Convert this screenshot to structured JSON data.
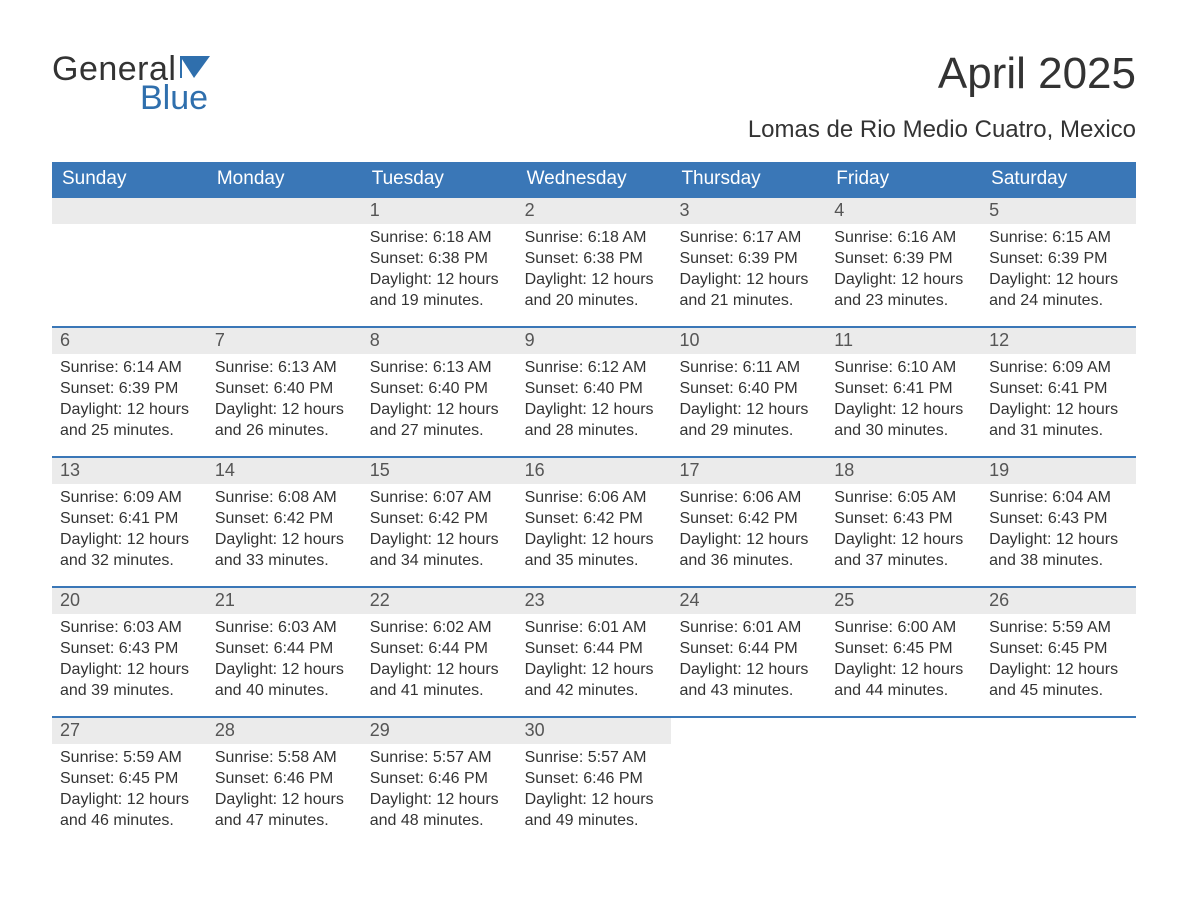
{
  "brand": {
    "word1": "General",
    "word2": "Blue",
    "word1_color": "#333333",
    "word2_color": "#2f6fad",
    "flag_color": "#2f6fad"
  },
  "title": "April 2025",
  "location": "Lomas de Rio Medio Cuatro, Mexico",
  "colors": {
    "header_bg": "#3a77b7",
    "header_text": "#ffffff",
    "daynum_bg": "#ebebeb",
    "daynum_text": "#555555",
    "week_divider": "#3a77b7",
    "body_text": "#333333",
    "page_bg": "#ffffff"
  },
  "day_headers": [
    "Sunday",
    "Monday",
    "Tuesday",
    "Wednesday",
    "Thursday",
    "Friday",
    "Saturday"
  ],
  "weeks": [
    [
      {
        "num": "",
        "sunrise": "",
        "sunset": "",
        "daylight": ""
      },
      {
        "num": "",
        "sunrise": "",
        "sunset": "",
        "daylight": ""
      },
      {
        "num": "1",
        "sunrise": "Sunrise: 6:18 AM",
        "sunset": "Sunset: 6:38 PM",
        "daylight": "Daylight: 12 hours and 19 minutes."
      },
      {
        "num": "2",
        "sunrise": "Sunrise: 6:18 AM",
        "sunset": "Sunset: 6:38 PM",
        "daylight": "Daylight: 12 hours and 20 minutes."
      },
      {
        "num": "3",
        "sunrise": "Sunrise: 6:17 AM",
        "sunset": "Sunset: 6:39 PM",
        "daylight": "Daylight: 12 hours and 21 minutes."
      },
      {
        "num": "4",
        "sunrise": "Sunrise: 6:16 AM",
        "sunset": "Sunset: 6:39 PM",
        "daylight": "Daylight: 12 hours and 23 minutes."
      },
      {
        "num": "5",
        "sunrise": "Sunrise: 6:15 AM",
        "sunset": "Sunset: 6:39 PM",
        "daylight": "Daylight: 12 hours and 24 minutes."
      }
    ],
    [
      {
        "num": "6",
        "sunrise": "Sunrise: 6:14 AM",
        "sunset": "Sunset: 6:39 PM",
        "daylight": "Daylight: 12 hours and 25 minutes."
      },
      {
        "num": "7",
        "sunrise": "Sunrise: 6:13 AM",
        "sunset": "Sunset: 6:40 PM",
        "daylight": "Daylight: 12 hours and 26 minutes."
      },
      {
        "num": "8",
        "sunrise": "Sunrise: 6:13 AM",
        "sunset": "Sunset: 6:40 PM",
        "daylight": "Daylight: 12 hours and 27 minutes."
      },
      {
        "num": "9",
        "sunrise": "Sunrise: 6:12 AM",
        "sunset": "Sunset: 6:40 PM",
        "daylight": "Daylight: 12 hours and 28 minutes."
      },
      {
        "num": "10",
        "sunrise": "Sunrise: 6:11 AM",
        "sunset": "Sunset: 6:40 PM",
        "daylight": "Daylight: 12 hours and 29 minutes."
      },
      {
        "num": "11",
        "sunrise": "Sunrise: 6:10 AM",
        "sunset": "Sunset: 6:41 PM",
        "daylight": "Daylight: 12 hours and 30 minutes."
      },
      {
        "num": "12",
        "sunrise": "Sunrise: 6:09 AM",
        "sunset": "Sunset: 6:41 PM",
        "daylight": "Daylight: 12 hours and 31 minutes."
      }
    ],
    [
      {
        "num": "13",
        "sunrise": "Sunrise: 6:09 AM",
        "sunset": "Sunset: 6:41 PM",
        "daylight": "Daylight: 12 hours and 32 minutes."
      },
      {
        "num": "14",
        "sunrise": "Sunrise: 6:08 AM",
        "sunset": "Sunset: 6:42 PM",
        "daylight": "Daylight: 12 hours and 33 minutes."
      },
      {
        "num": "15",
        "sunrise": "Sunrise: 6:07 AM",
        "sunset": "Sunset: 6:42 PM",
        "daylight": "Daylight: 12 hours and 34 minutes."
      },
      {
        "num": "16",
        "sunrise": "Sunrise: 6:06 AM",
        "sunset": "Sunset: 6:42 PM",
        "daylight": "Daylight: 12 hours and 35 minutes."
      },
      {
        "num": "17",
        "sunrise": "Sunrise: 6:06 AM",
        "sunset": "Sunset: 6:42 PM",
        "daylight": "Daylight: 12 hours and 36 minutes."
      },
      {
        "num": "18",
        "sunrise": "Sunrise: 6:05 AM",
        "sunset": "Sunset: 6:43 PM",
        "daylight": "Daylight: 12 hours and 37 minutes."
      },
      {
        "num": "19",
        "sunrise": "Sunrise: 6:04 AM",
        "sunset": "Sunset: 6:43 PM",
        "daylight": "Daylight: 12 hours and 38 minutes."
      }
    ],
    [
      {
        "num": "20",
        "sunrise": "Sunrise: 6:03 AM",
        "sunset": "Sunset: 6:43 PM",
        "daylight": "Daylight: 12 hours and 39 minutes."
      },
      {
        "num": "21",
        "sunrise": "Sunrise: 6:03 AM",
        "sunset": "Sunset: 6:44 PM",
        "daylight": "Daylight: 12 hours and 40 minutes."
      },
      {
        "num": "22",
        "sunrise": "Sunrise: 6:02 AM",
        "sunset": "Sunset: 6:44 PM",
        "daylight": "Daylight: 12 hours and 41 minutes."
      },
      {
        "num": "23",
        "sunrise": "Sunrise: 6:01 AM",
        "sunset": "Sunset: 6:44 PM",
        "daylight": "Daylight: 12 hours and 42 minutes."
      },
      {
        "num": "24",
        "sunrise": "Sunrise: 6:01 AM",
        "sunset": "Sunset: 6:44 PM",
        "daylight": "Daylight: 12 hours and 43 minutes."
      },
      {
        "num": "25",
        "sunrise": "Sunrise: 6:00 AM",
        "sunset": "Sunset: 6:45 PM",
        "daylight": "Daylight: 12 hours and 44 minutes."
      },
      {
        "num": "26",
        "sunrise": "Sunrise: 5:59 AM",
        "sunset": "Sunset: 6:45 PM",
        "daylight": "Daylight: 12 hours and 45 minutes."
      }
    ],
    [
      {
        "num": "27",
        "sunrise": "Sunrise: 5:59 AM",
        "sunset": "Sunset: 6:45 PM",
        "daylight": "Daylight: 12 hours and 46 minutes."
      },
      {
        "num": "28",
        "sunrise": "Sunrise: 5:58 AM",
        "sunset": "Sunset: 6:46 PM",
        "daylight": "Daylight: 12 hours and 47 minutes."
      },
      {
        "num": "29",
        "sunrise": "Sunrise: 5:57 AM",
        "sunset": "Sunset: 6:46 PM",
        "daylight": "Daylight: 12 hours and 48 minutes."
      },
      {
        "num": "30",
        "sunrise": "Sunrise: 5:57 AM",
        "sunset": "Sunset: 6:46 PM",
        "daylight": "Daylight: 12 hours and 49 minutes."
      },
      {
        "num": "",
        "sunrise": "",
        "sunset": "",
        "daylight": ""
      },
      {
        "num": "",
        "sunrise": "",
        "sunset": "",
        "daylight": ""
      },
      {
        "num": "",
        "sunrise": "",
        "sunset": "",
        "daylight": ""
      }
    ]
  ]
}
